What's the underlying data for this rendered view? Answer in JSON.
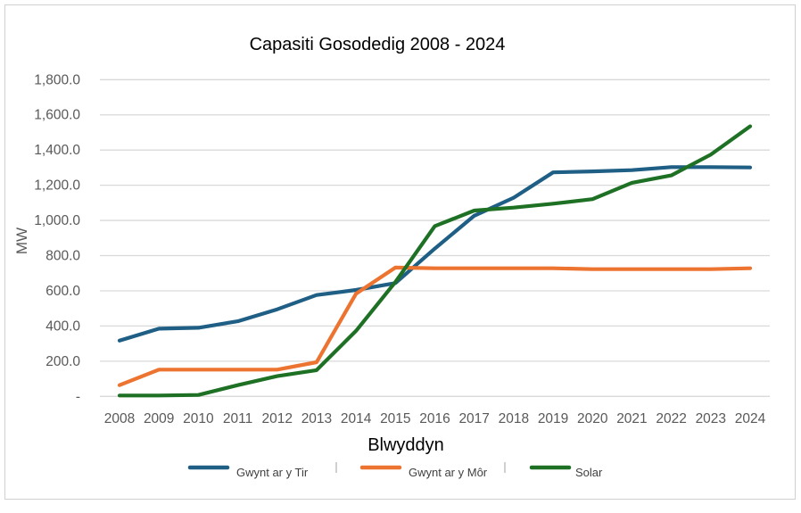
{
  "chart_data": {
    "type": "line",
    "title": "Capasiti Gosodedig 2008 - 2024",
    "xlabel": "Blwyddyn",
    "ylabel": "MW",
    "ylim": [
      0,
      1800
    ],
    "yticks": [
      0,
      200,
      400,
      600,
      800,
      1000,
      1200,
      1400,
      1600,
      1800
    ],
    "ytick_labels": [
      "-",
      "200.0",
      "400.0",
      "600.0",
      "800.0",
      "1,000.0",
      "1,200.0",
      "1,400.0",
      "1,600.0",
      "1,800.0"
    ],
    "grid": true,
    "legend_position": "bottom",
    "categories": [
      "2008",
      "2009",
      "2010",
      "2011",
      "2012",
      "2013",
      "2014",
      "2015",
      "2016",
      "2017",
      "2018",
      "2019",
      "2020",
      "2021",
      "2022",
      "2023",
      "2024"
    ],
    "series": [
      {
        "name": "Gwynt ar y Tir",
        "color": "#1f5f85",
        "values": [
          317,
          385,
          390,
          427,
          495,
          576,
          605,
          644,
          840,
          1027,
          1129,
          1273,
          1279,
          1286,
          1303,
          1303,
          1301
        ]
      },
      {
        "name": "Gwynt ar y Môr",
        "color": "#ed7330",
        "values": [
          64,
          152,
          152,
          152,
          152,
          194,
          583,
          732,
          728,
          728,
          728,
          728,
          723,
          723,
          723,
          723,
          728
        ]
      },
      {
        "name": "Solar",
        "color": "#1e7124",
        "values": [
          5,
          5,
          8,
          64,
          115,
          149,
          372,
          650,
          968,
          1056,
          1073,
          1095,
          1121,
          1214,
          1256,
          1374,
          1535
        ]
      }
    ]
  }
}
